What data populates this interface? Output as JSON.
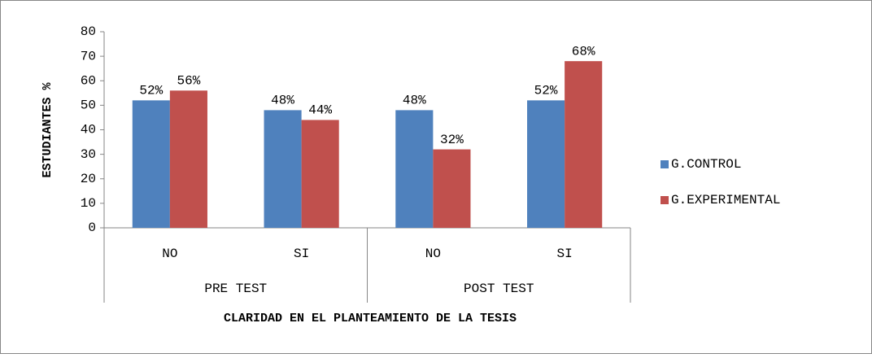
{
  "chart_data": {
    "type": "bar",
    "x_label": "CLARIDAD EN EL PLANTEAMIENTO DE LA TESIS",
    "y_label": "ESTUDIANTES %",
    "categories": [
      "NO",
      "SI",
      "NO",
      "SI"
    ],
    "groups": [
      "PRE TEST",
      "POST TEST"
    ],
    "series": [
      {
        "name": "G.CONTROL",
        "color": "#4f81bd",
        "values": [
          52,
          48,
          48,
          52
        ],
        "value_labels": [
          "52%",
          "48%",
          "48%",
          "52%"
        ]
      },
      {
        "name": "G.EXPERIMENTAL",
        "color": "#c0504d",
        "values": [
          56,
          44,
          32,
          68
        ],
        "value_labels": [
          "56%",
          "44%",
          "32%",
          "68%"
        ]
      }
    ],
    "ylim": [
      0,
      80
    ],
    "yticks": [
      0,
      10,
      20,
      30,
      40,
      50,
      60,
      70,
      80
    ],
    "legend": "right"
  }
}
